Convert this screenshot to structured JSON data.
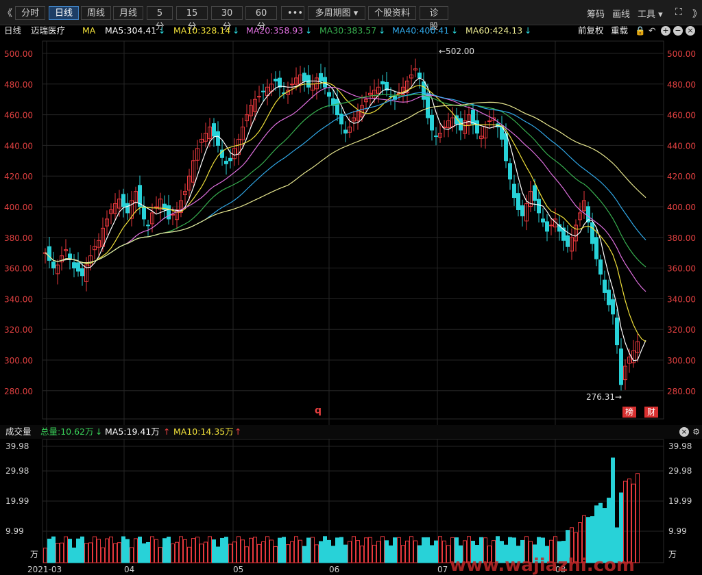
{
  "toolbar": {
    "back": "《",
    "tabs": [
      "分时",
      "日线",
      "周线",
      "月线",
      "5分",
      "15分",
      "30分",
      "60分",
      "•••",
      "多周期图 ▾",
      "个股资料",
      "诊股"
    ],
    "active": 1,
    "right": [
      "筹码",
      "画线",
      "工具 ▾"
    ]
  },
  "ma_header": {
    "period": "日线",
    "stock": "迈瑞医疗",
    "ma": "MA",
    "ma5": "MA5:304.41",
    "ma10": "MA10:328.14",
    "ma20": "MA20:358.93",
    "ma30": "MA30:383.57",
    "ma40": "MA40:400.41",
    "ma60": "MA60:424.13",
    "down": "↓",
    "right": [
      "前复权",
      "重载"
    ]
  },
  "colors": {
    "up": "#e8383d",
    "down": "#28d2d8",
    "ma5": "#ffffff",
    "ma10": "#f2e23a",
    "ma20": "#e070e0",
    "ma30": "#38b050",
    "ma40": "#30a8e8",
    "ma60": "#e8e890"
  },
  "price_axis": [
    "500.00",
    "480.00",
    "460.00",
    "440.00",
    "420.00",
    "400.00",
    "380.00",
    "360.00",
    "340.00",
    "320.00",
    "300.00",
    "280.00"
  ],
  "annotations": {
    "high": "←502.00",
    "low": "276.31→",
    "marker": "q",
    "tag1": "榜",
    "tag2": "财"
  },
  "volume_header": {
    "label": "成交量",
    "total": "总量:10.62万",
    "ma5": "MA5:19.41万",
    "ma10": "MA10:14.35万",
    "down": "↓",
    "up": "↑"
  },
  "volume_axis": [
    "39.98",
    "29.98",
    "19.99",
    "9.99",
    "万"
  ],
  "x_axis": [
    "2021-03",
    "04",
    "05",
    "06",
    "07",
    "08"
  ],
  "watermark": "www.wajiazhi.com"
}
